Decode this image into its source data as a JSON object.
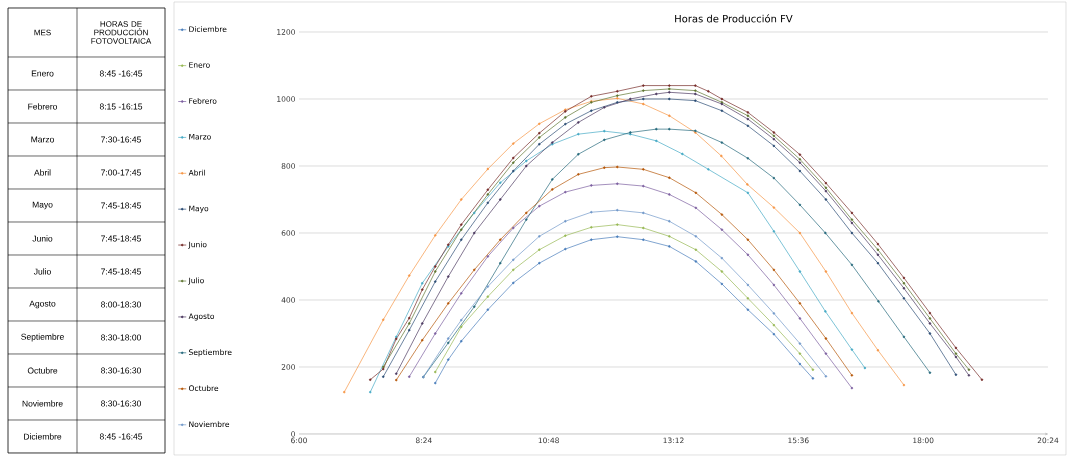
{
  "chart_data": [
    {
      "type": "other",
      "annotations": [
        "MES",
        "HORAS DE PRODUCCIÓN FOTOVOLTAICA",
        "Enero",
        "8:45 -16:45",
        "Febrero",
        "8:15 -16:15",
        "Marzo",
        "7:30-16:45",
        "Abril",
        "7:00-17:45",
        "Mayo",
        "7:45-18:45",
        "Junio",
        "7:45-18:45",
        "Julio",
        "7:45-18:45",
        "Agosto",
        "8:00-18:30",
        "Septiembre",
        "8:30-18:00",
        "Octubre",
        "8:30-16:30",
        "Noviembre",
        "8:30-16:30",
        "Diciembre",
        "8:45 -16:45"
      ]
    },
    {
      "type": "line",
      "title": "Horas de Producción FV",
      "xlim": [
        6,
        20.4
      ],
      "ylim": [
        0,
        1200
      ],
      "xticks": [
        {
          "value": 6,
          "label": "6:00"
        },
        {
          "value": 8.4,
          "label": "8:24"
        },
        {
          "value": 10.8,
          "label": "10:48"
        },
        {
          "value": 13.2,
          "label": "13:12"
        },
        {
          "value": 15.6,
          "label": "15:36"
        },
        {
          "value": 18,
          "label": "18:00"
        },
        {
          "value": 20.4,
          "label": "20:24"
        }
      ],
      "yticks": [
        0,
        200,
        400,
        600,
        800,
        1000,
        1200
      ],
      "grid": "y",
      "legend": "left",
      "marker": "circle",
      "line_style": "solid",
      "series": [
        {
          "name": "Diciembre",
          "color": "#4a7ebb",
          "x": [
            8.62,
            8.87,
            9.12,
            9.63,
            10.12,
            10.62,
            11.12,
            11.62,
            12.12,
            12.62,
            13.12,
            13.63,
            14.13,
            14.63,
            15.13,
            15.63,
            15.88
          ],
          "values": [
            152,
            222,
            277,
            371,
            451,
            510,
            552,
            580,
            589,
            580,
            560,
            515,
            448,
            371,
            298,
            209,
            166
          ]
        },
        {
          "name": "Enero",
          "color": "#98b954",
          "x": [
            8.62,
            9.12,
            9.63,
            10.12,
            10.62,
            11.12,
            11.62,
            12.12,
            12.62,
            13.12,
            13.63,
            14.13,
            14.63,
            15.13,
            15.63,
            15.88
          ],
          "values": [
            185,
            320,
            410,
            490,
            550,
            592,
            617,
            625,
            615,
            590,
            550,
            485,
            405,
            325,
            240,
            192
          ]
        },
        {
          "name": "Febrero",
          "color": "#7d60a0",
          "x": [
            8.12,
            8.62,
            9.12,
            9.63,
            10.12,
            10.62,
            11.12,
            11.62,
            12.12,
            12.62,
            13.12,
            13.63,
            14.13,
            14.63,
            15.13,
            15.63,
            16.13,
            16.63
          ],
          "values": [
            171,
            300,
            420,
            530,
            615,
            680,
            722,
            742,
            747,
            740,
            715,
            675,
            610,
            535,
            445,
            345,
            240,
            137
          ]
        },
        {
          "name": "Marzo",
          "color": "#46aac5",
          "x": [
            7.37,
            7.87,
            8.37,
            8.87,
            9.37,
            9.87,
            10.37,
            10.87,
            11.37,
            11.87,
            12.37,
            12.87,
            13.37,
            13.87,
            14.63,
            15.13,
            15.63,
            16.12,
            16.63,
            16.88
          ],
          "values": [
            125,
            290,
            450,
            560,
            660,
            750,
            815,
            865,
            895,
            904,
            895,
            875,
            836,
            790,
            720,
            605,
            485,
            366,
            252,
            197
          ]
        },
        {
          "name": "Abril",
          "color": "#f79646",
          "x": [
            6.87,
            7.62,
            8.12,
            8.62,
            9.12,
            9.63,
            10.12,
            10.62,
            11.12,
            11.62,
            12.12,
            12.62,
            13.12,
            13.62,
            14.12,
            14.62,
            15.13,
            15.63,
            16.13,
            16.63,
            17.13,
            17.63
          ],
          "values": [
            125,
            341,
            473,
            593,
            700,
            791,
            867,
            926,
            968,
            993,
            1002,
            985,
            950,
            900,
            830,
            745,
            676,
            600,
            485,
            361,
            250,
            146
          ]
        },
        {
          "name": "Mayo",
          "color": "#2c4d75",
          "x": [
            7.62,
            8.12,
            8.62,
            9.12,
            9.63,
            10.12,
            10.62,
            11.12,
            11.62,
            12.12,
            12.62,
            13.12,
            13.62,
            14.13,
            14.63,
            15.13,
            15.63,
            16.13,
            16.63,
            17.13,
            17.63,
            18.13,
            18.63
          ],
          "values": [
            171,
            310,
            455,
            580,
            690,
            785,
            865,
            925,
            965,
            990,
            1000,
            1000,
            995,
            965,
            920,
            860,
            785,
            700,
            600,
            510,
            405,
            300,
            177
          ]
        },
        {
          "name": "Junio",
          "color": "#772c2a",
          "x": [
            7.37,
            7.62,
            7.87,
            8.12,
            8.37,
            8.62,
            8.87,
            9.12,
            9.63,
            10.12,
            10.62,
            11.12,
            11.62,
            12.12,
            12.62,
            13.12,
            13.62,
            13.87,
            14.13,
            14.63,
            15.13,
            15.63,
            16.13,
            16.63,
            17.13,
            17.63,
            18.13,
            18.63,
            19.13
          ],
          "values": [
            162,
            194,
            284,
            346,
            431,
            500,
            565,
            625,
            729,
            824,
            898,
            963,
            1008,
            1023,
            1040,
            1040,
            1040,
            1023,
            1000,
            960,
            900,
            834,
            749,
            660,
            567,
            466,
            361,
            257,
            162
          ]
        },
        {
          "name": "Julio",
          "color": "#5f7530",
          "x": [
            7.62,
            8.12,
            8.62,
            9.12,
            9.63,
            10.12,
            10.62,
            11.12,
            11.62,
            12.12,
            12.62,
            13.12,
            13.62,
            14.13,
            14.63,
            15.13,
            15.63,
            16.13,
            16.63,
            17.13,
            17.63,
            18.13,
            18.63,
            18.88
          ],
          "values": [
            200,
            330,
            485,
            610,
            715,
            810,
            885,
            945,
            990,
            1010,
            1025,
            1030,
            1025,
            990,
            950,
            890,
            820,
            735,
            640,
            550,
            450,
            345,
            240,
            192
          ]
        },
        {
          "name": "Agosto",
          "color": "#4d3b62",
          "x": [
            7.87,
            8.37,
            8.87,
            9.37,
            9.87,
            10.37,
            10.87,
            11.37,
            11.87,
            12.37,
            12.87,
            13.12,
            13.62,
            14.13,
            14.63,
            15.13,
            15.63,
            16.13,
            16.63,
            17.13,
            17.63,
            18.13,
            18.63,
            18.88
          ],
          "values": [
            180,
            330,
            470,
            600,
            700,
            800,
            870,
            930,
            975,
            1000,
            1015,
            1020,
            1015,
            985,
            940,
            880,
            810,
            725,
            630,
            535,
            435,
            330,
            230,
            175
          ]
        },
        {
          "name": "Septiembre",
          "color": "#276a7c",
          "x": [
            8.39,
            8.87,
            9.37,
            9.87,
            10.37,
            10.87,
            11.37,
            11.87,
            12.37,
            12.87,
            13.12,
            13.62,
            14.13,
            14.63,
            15.13,
            15.63,
            16.12,
            16.63,
            17.14,
            17.63,
            18.13
          ],
          "values": [
            170,
            272,
            380,
            510,
            640,
            760,
            835,
            878,
            900,
            910,
            910,
            905,
            870,
            823,
            764,
            684,
            600,
            505,
            396,
            290,
            183
          ]
        },
        {
          "name": "Octubre",
          "color": "#b65708",
          "x": [
            7.87,
            8.37,
            8.87,
            9.37,
            9.87,
            10.37,
            10.87,
            11.37,
            11.87,
            12.12,
            12.62,
            13.12,
            13.63,
            14.13,
            14.63,
            15.13,
            15.63,
            16.13,
            16.63
          ],
          "values": [
            161,
            280,
            390,
            490,
            580,
            660,
            730,
            775,
            795,
            797,
            790,
            765,
            720,
            655,
            580,
            490,
            390,
            285,
            175
          ]
        },
        {
          "name": "Noviembre",
          "color": "#729aca",
          "x": [
            8.39,
            8.87,
            9.12,
            9.63,
            10.12,
            10.62,
            11.12,
            11.62,
            12.12,
            12.62,
            13.12,
            13.63,
            14.13,
            14.63,
            15.13,
            15.63,
            16.13
          ],
          "values": [
            170,
            285,
            340,
            440,
            520,
            590,
            635,
            662,
            668,
            660,
            635,
            590,
            525,
            445,
            360,
            270,
            172
          ]
        }
      ]
    }
  ]
}
